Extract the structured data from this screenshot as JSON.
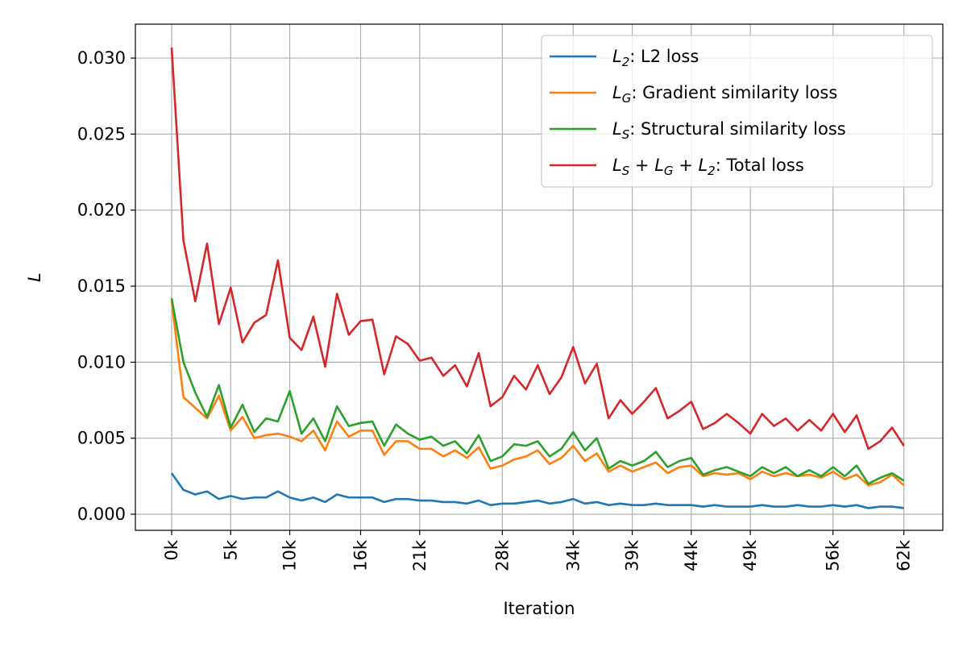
{
  "chart_data": {
    "type": "line",
    "x_label": "Iteration",
    "y_label": "$L$",
    "x": [
      0,
      1000,
      2000,
      3000,
      4000,
      5000,
      6000,
      7000,
      8000,
      9000,
      10000,
      11000,
      12000,
      13000,
      14000,
      15000,
      16000,
      17000,
      18000,
      19000,
      20000,
      21000,
      22000,
      23000,
      24000,
      25000,
      26000,
      27000,
      28000,
      29000,
      30000,
      31000,
      32000,
      33000,
      34000,
      35000,
      36000,
      37000,
      38000,
      39000,
      40000,
      41000,
      42000,
      43000,
      44000,
      45000,
      46000,
      47000,
      48000,
      49000,
      50000,
      51000,
      52000,
      53000,
      54000,
      55000,
      56000,
      57000,
      58000,
      59000,
      60000,
      61000,
      62000
    ],
    "series": [
      {
        "name": "$L_2$: L2 loss",
        "color": "#1f77b4",
        "values": [
          0.0027,
          0.0016,
          0.0013,
          0.0015,
          0.001,
          0.0012,
          0.001,
          0.0011,
          0.0011,
          0.0015,
          0.0011,
          0.0009,
          0.0011,
          0.0008,
          0.0013,
          0.0011,
          0.0011,
          0.0011,
          0.0008,
          0.001,
          0.001,
          0.0009,
          0.0009,
          0.0008,
          0.0008,
          0.0007,
          0.0009,
          0.0006,
          0.0007,
          0.0007,
          0.0008,
          0.0009,
          0.0007,
          0.0008,
          0.001,
          0.0007,
          0.0008,
          0.0006,
          0.0007,
          0.0006,
          0.0006,
          0.0007,
          0.0006,
          0.0006,
          0.0006,
          0.0005,
          0.0006,
          0.0005,
          0.0005,
          0.0005,
          0.0006,
          0.0005,
          0.0005,
          0.0006,
          0.0005,
          0.0005,
          0.0006,
          0.0005,
          0.0006,
          0.0004,
          0.0005,
          0.0005,
          0.0004
        ]
      },
      {
        "name": "$L_G$: Gradient similarity loss",
        "color": "#ff7f0e",
        "values": [
          0.014,
          0.0077,
          0.007,
          0.0063,
          0.0078,
          0.0055,
          0.0064,
          0.005,
          0.0052,
          0.0053,
          0.0051,
          0.0048,
          0.0055,
          0.0042,
          0.0061,
          0.0051,
          0.0055,
          0.0055,
          0.0039,
          0.0048,
          0.0048,
          0.0043,
          0.0043,
          0.0038,
          0.0042,
          0.0037,
          0.0044,
          0.003,
          0.0032,
          0.0036,
          0.0038,
          0.0042,
          0.0033,
          0.0037,
          0.0045,
          0.0035,
          0.004,
          0.0028,
          0.0032,
          0.0028,
          0.0031,
          0.0034,
          0.0027,
          0.0031,
          0.0032,
          0.0025,
          0.0027,
          0.0026,
          0.0027,
          0.0023,
          0.0028,
          0.0025,
          0.0027,
          0.0025,
          0.0026,
          0.0024,
          0.0028,
          0.0023,
          0.0026,
          0.0019,
          0.0021,
          0.0026,
          0.0019
        ]
      },
      {
        "name": "$L_S$: Structural similarity loss",
        "color": "#2ca02c",
        "values": [
          0.0142,
          0.01,
          0.008,
          0.0064,
          0.0085,
          0.0057,
          0.0072,
          0.0054,
          0.0063,
          0.0061,
          0.0081,
          0.0053,
          0.0063,
          0.0048,
          0.0071,
          0.0058,
          0.006,
          0.0061,
          0.0045,
          0.0059,
          0.0053,
          0.0049,
          0.0051,
          0.0045,
          0.0048,
          0.004,
          0.0052,
          0.0035,
          0.0038,
          0.0046,
          0.0045,
          0.0048,
          0.0038,
          0.0043,
          0.0054,
          0.0042,
          0.005,
          0.003,
          0.0035,
          0.0032,
          0.0035,
          0.0041,
          0.0031,
          0.0035,
          0.0037,
          0.0026,
          0.0029,
          0.0031,
          0.0028,
          0.0025,
          0.0031,
          0.0027,
          0.0031,
          0.0025,
          0.0029,
          0.0025,
          0.0031,
          0.0025,
          0.0032,
          0.002,
          0.0024,
          0.0027,
          0.0022
        ]
      },
      {
        "name": "$L_S + L_G + L_2$: Total loss",
        "color": "#d62728",
        "values": [
          0.0307,
          0.018,
          0.014,
          0.0178,
          0.0125,
          0.0149,
          0.0113,
          0.0126,
          0.0131,
          0.0167,
          0.0116,
          0.0108,
          0.013,
          0.0097,
          0.0145,
          0.0118,
          0.0127,
          0.0128,
          0.0092,
          0.0117,
          0.0112,
          0.0101,
          0.0103,
          0.0091,
          0.0098,
          0.0084,
          0.0106,
          0.0071,
          0.0077,
          0.0091,
          0.0082,
          0.0098,
          0.0079,
          0.009,
          0.011,
          0.0086,
          0.0099,
          0.0063,
          0.0075,
          0.0066,
          0.0074,
          0.0083,
          0.0063,
          0.0068,
          0.0074,
          0.0056,
          0.006,
          0.0066,
          0.006,
          0.0053,
          0.0066,
          0.0058,
          0.0063,
          0.0055,
          0.0062,
          0.0055,
          0.0066,
          0.0054,
          0.0065,
          0.0043,
          0.0048,
          0.0057,
          0.0045
        ]
      }
    ],
    "xlim": [
      -3070,
      65300
    ],
    "xticks": [
      {
        "value": 0,
        "label": "0k"
      },
      {
        "value": 5000,
        "label": "5k"
      },
      {
        "value": 10000,
        "label": "10k"
      },
      {
        "value": 16000,
        "label": "16k"
      },
      {
        "value": 21000,
        "label": "21k"
      },
      {
        "value": 28000,
        "label": "28k"
      },
      {
        "value": 34000,
        "label": "34k"
      },
      {
        "value": 39000,
        "label": "39k"
      },
      {
        "value": 44000,
        "label": "44k"
      },
      {
        "value": 49000,
        "label": "49k"
      },
      {
        "value": 56000,
        "label": "56k"
      },
      {
        "value": 62000,
        "label": "62k"
      }
    ],
    "ylim": [
      -0.00106,
      0.03223
    ],
    "yticks": [
      {
        "value": 0,
        "label": "0.000"
      },
      {
        "value": 0.005,
        "label": "0.005"
      },
      {
        "value": 0.01,
        "label": "0.010"
      },
      {
        "value": 0.015,
        "label": "0.015"
      },
      {
        "value": 0.02,
        "label": "0.020"
      },
      {
        "value": 0.025,
        "label": "0.025"
      },
      {
        "value": 0.03,
        "label": "0.030"
      }
    ],
    "grid": true,
    "legend": "upper right"
  }
}
